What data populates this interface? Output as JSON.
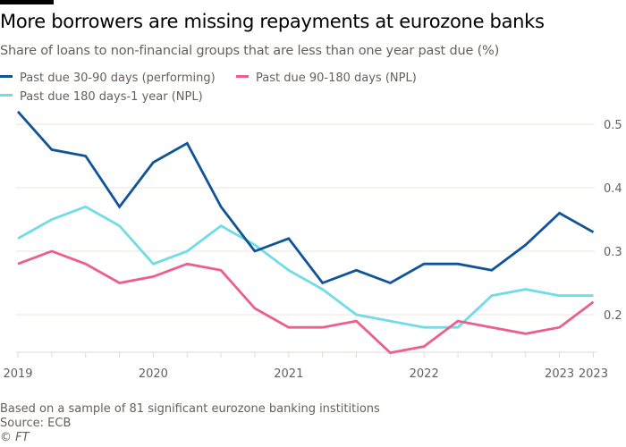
{
  "title": "More borrowers are missing repayments at eurozone banks",
  "subtitle": "Share of loans to non-financial groups that are less than one year past due (%)",
  "footnote": "Based on a sample of 81 significant eurozone banking instititions",
  "source": "Source: ECB",
  "credit": "© FT",
  "chart_data": {
    "type": "line",
    "title": "More borrowers are missing repayments at eurozone banks",
    "subtitle": "Share of loans to non-financial groups that are less than one year past due (%)",
    "xlabel": "",
    "ylabel": "",
    "x": [
      "2019 Q1",
      "2019 Q2",
      "2019 Q3",
      "2019 Q4",
      "2020 Q1",
      "2020 Q2",
      "2020 Q3",
      "2020 Q4",
      "2021 Q1",
      "2021 Q2",
      "2021 Q3",
      "2021 Q4",
      "2022 Q1",
      "2022 Q2",
      "2022 Q3",
      "2022 Q4",
      "2023 Q1",
      "2023 Q2"
    ],
    "x_tick_labels": [
      {
        "index": 0,
        "label": "2019"
      },
      {
        "index": 4,
        "label": "2020"
      },
      {
        "index": 8,
        "label": "2021"
      },
      {
        "index": 12,
        "label": "2022"
      },
      {
        "index": 16,
        "label": "2023"
      },
      {
        "index": 17,
        "label": "2023"
      }
    ],
    "y_ticks": [
      0.2,
      0.3,
      0.4,
      0.5
    ],
    "ylim": [
      0.14,
      0.53
    ],
    "y_axis_position": "right",
    "grid": true,
    "legend_position": "top-left",
    "series": [
      {
        "name": "Past due 30-90 days (performing)",
        "color": "#0f5499",
        "values": [
          0.52,
          0.46,
          0.45,
          0.37,
          0.44,
          0.47,
          0.37,
          0.3,
          0.32,
          0.25,
          0.27,
          0.25,
          0.28,
          0.28,
          0.27,
          0.31,
          0.36,
          0.33
        ]
      },
      {
        "name": "Past due 90-180 days (NPL)",
        "color": "#eb5e8d",
        "values": [
          0.28,
          0.3,
          0.28,
          0.25,
          0.26,
          0.28,
          0.27,
          0.21,
          0.18,
          0.18,
          0.19,
          0.14,
          0.15,
          0.19,
          0.18,
          0.17,
          0.18,
          0.22
        ]
      },
      {
        "name": "Past due 180 days-1 year (NPL)",
        "color": "#70dce5",
        "values": [
          0.32,
          0.35,
          0.37,
          0.34,
          0.28,
          0.3,
          0.34,
          0.31,
          0.27,
          0.24,
          0.2,
          0.19,
          0.18,
          0.18,
          0.23,
          0.24,
          0.23,
          0.23
        ]
      }
    ]
  }
}
